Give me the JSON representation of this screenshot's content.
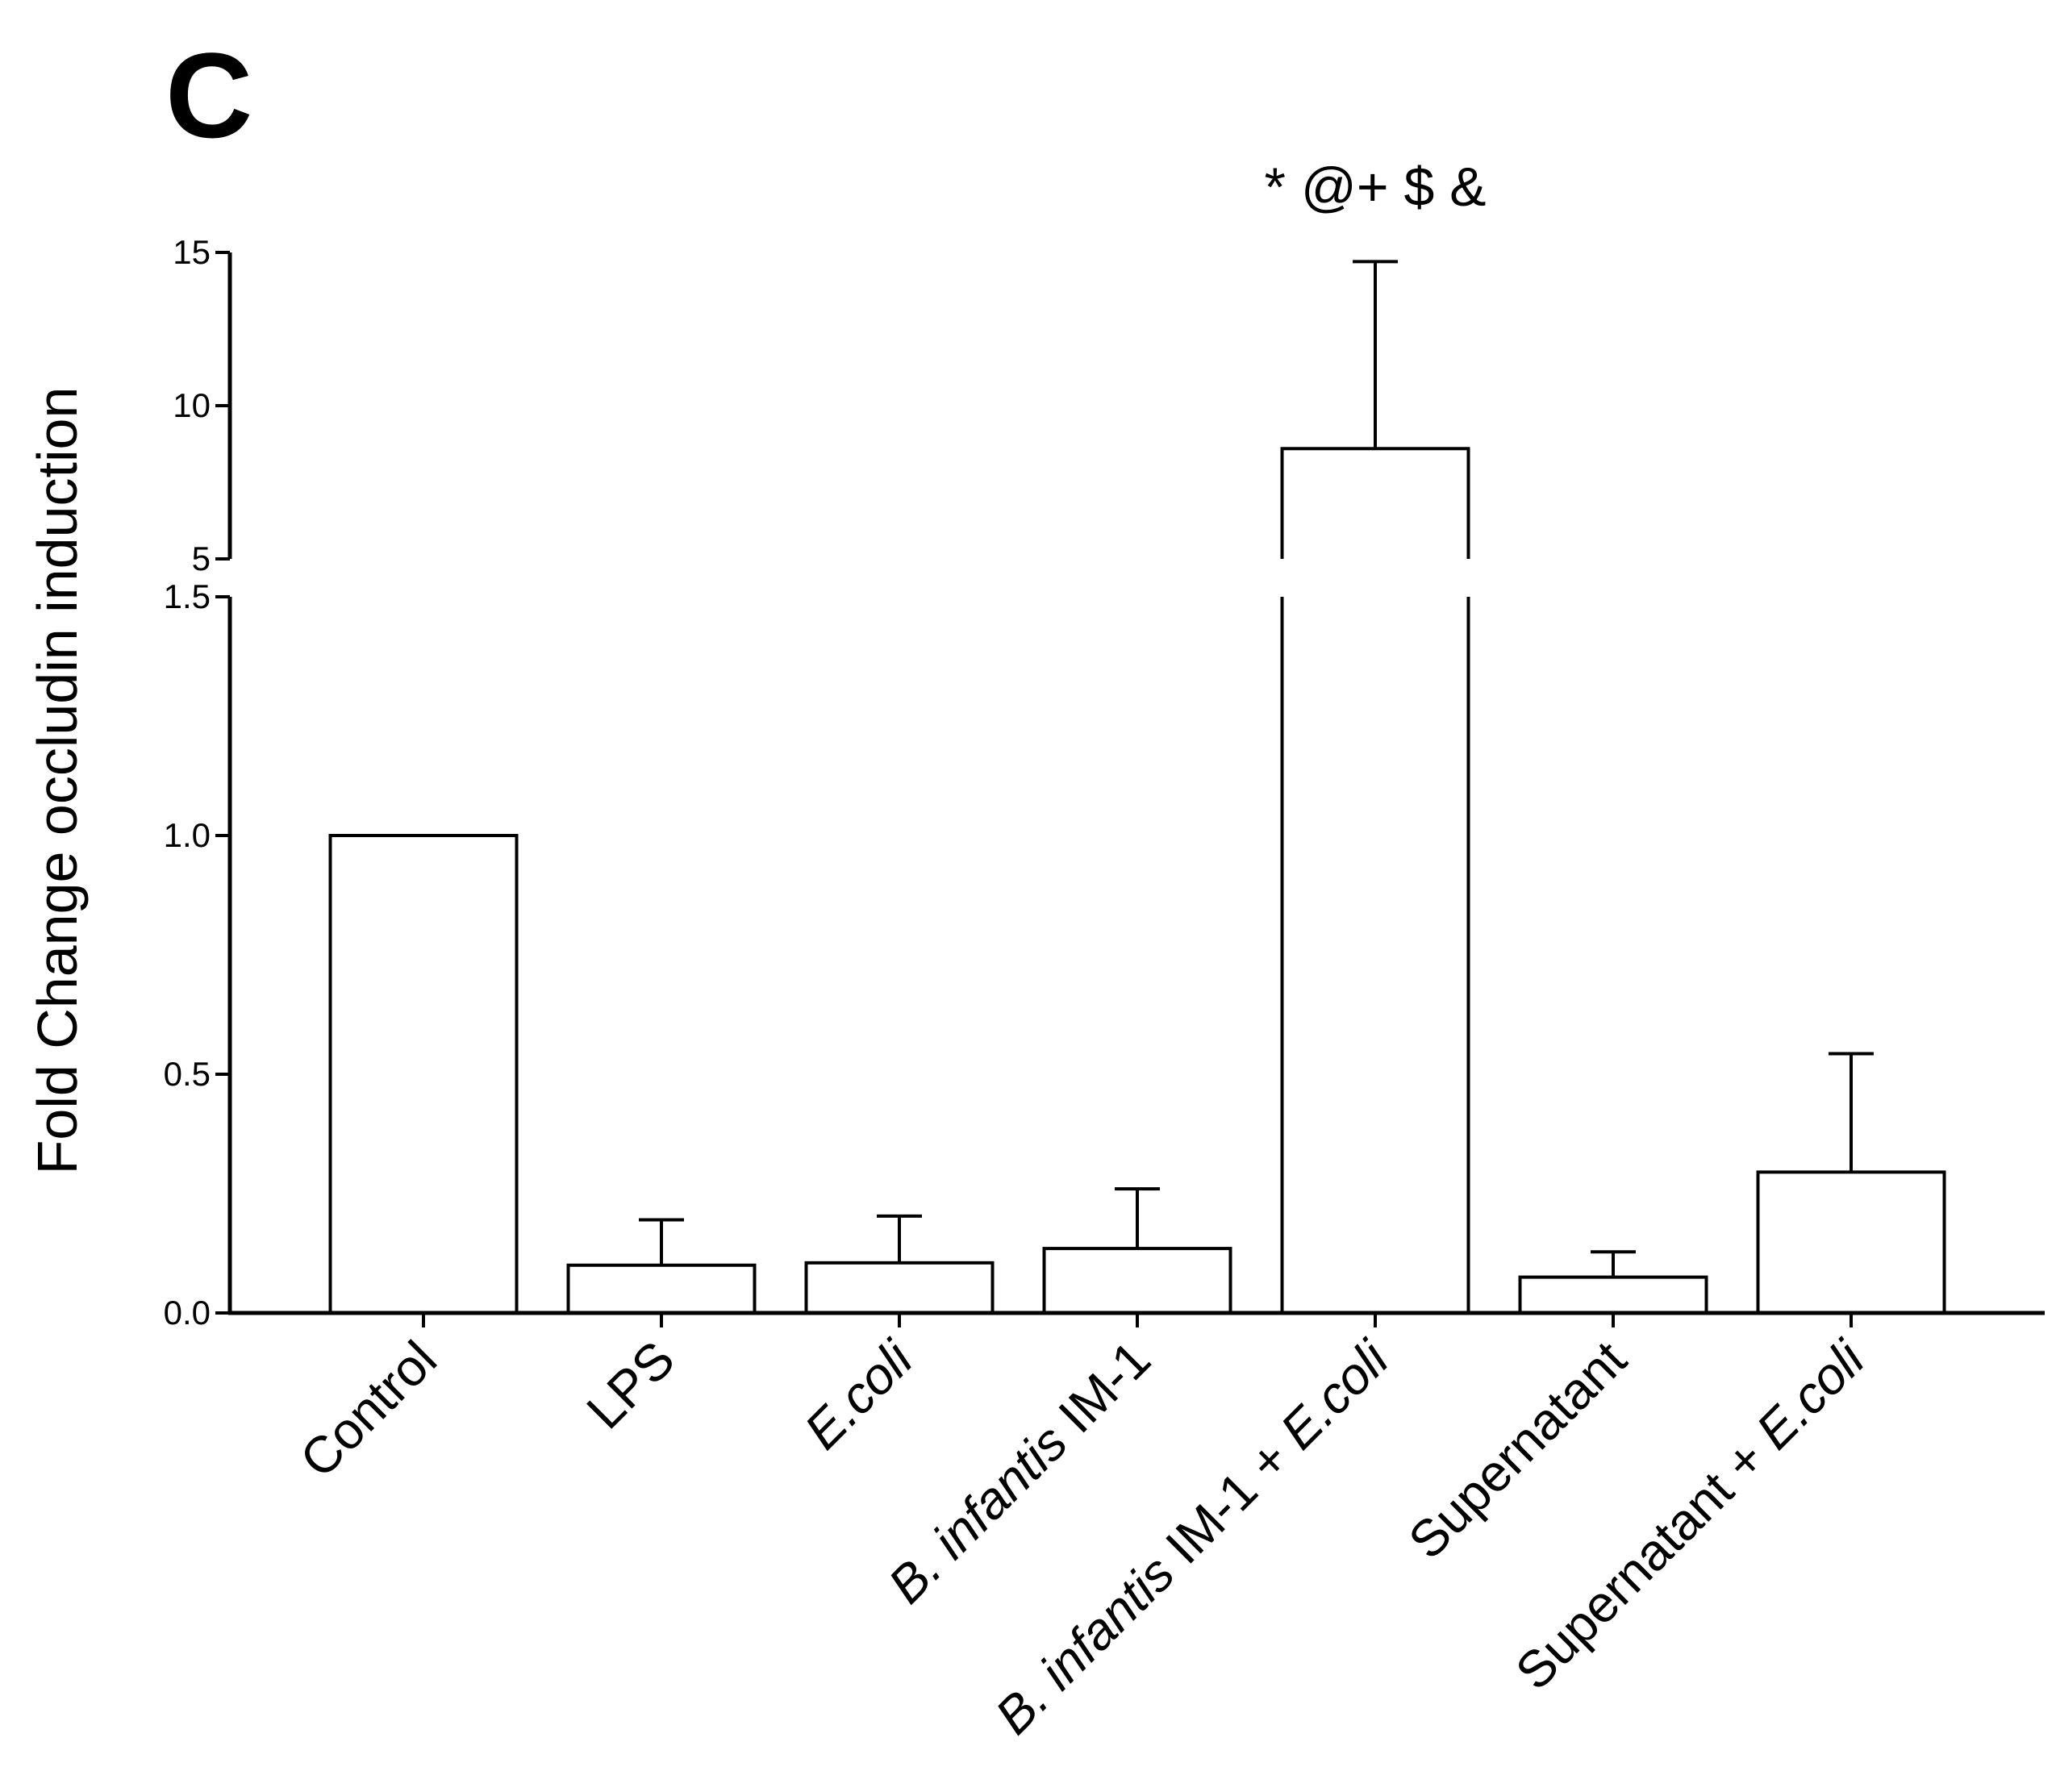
{
  "panel_label": "C",
  "chart_data": {
    "type": "bar",
    "title": "",
    "xlabel": "",
    "ylabel": "Fold Change occludin induction",
    "y_axis_break": {
      "lower_range": [
        0,
        1.5
      ],
      "upper_range": [
        5,
        15
      ],
      "lower_ticks": [
        "0.0",
        "0.5",
        "1.0",
        "1.5"
      ],
      "upper_ticks": [
        "5",
        "10",
        "15"
      ]
    },
    "categories": [
      {
        "prefix": "",
        "italic": "",
        "suffix": "Control"
      },
      {
        "prefix": "",
        "italic": "",
        "suffix": "LPS"
      },
      {
        "prefix": "",
        "italic": "E.coli",
        "suffix": ""
      },
      {
        "prefix": "",
        "italic": "B. infantis",
        "suffix": " IM-1"
      },
      {
        "prefix": "",
        "italic": "B. infantis",
        "suffix": " IM-1 + ",
        "italic2": "E.coli"
      },
      {
        "prefix": "",
        "italic": "",
        "suffix": "Supernatant"
      },
      {
        "prefix": "",
        "italic": "",
        "suffix": "Supernatant + ",
        "italic2": "E.coli"
      }
    ],
    "values": [
      1.0,
      0.1,
      0.105,
      0.135,
      8.6,
      0.075,
      0.295
    ],
    "error_upper": [
      null,
      0.195,
      0.203,
      0.26,
      14.7,
      0.128,
      0.543
    ],
    "annotation": "*   @+  $ &",
    "annotation_bar_index": 4
  }
}
